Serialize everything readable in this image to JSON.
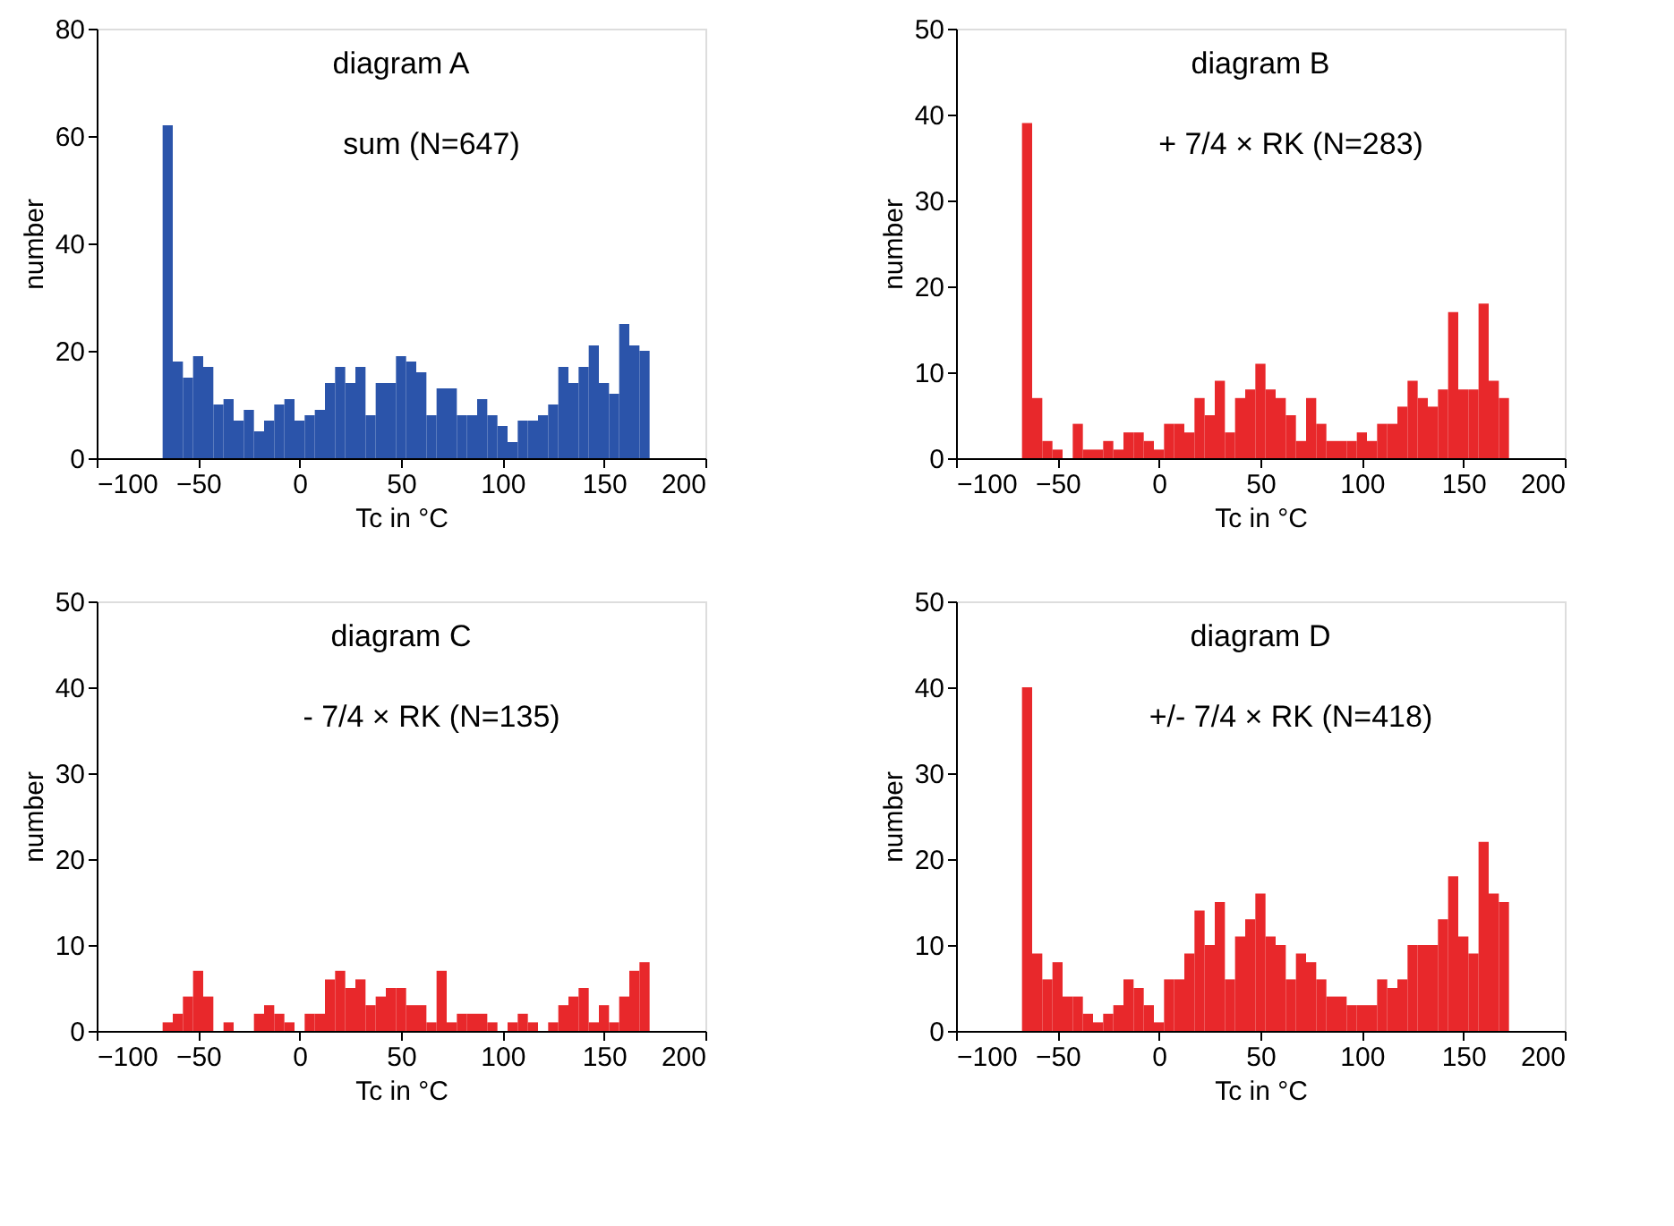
{
  "chart_data": [
    {
      "type": "histogram",
      "title": "diagram A",
      "subtitle": "sum (N=647)",
      "xlabel": "Tc in °C",
      "ylabel": "number",
      "color": "#2b54aa",
      "bins": [
        -67.5,
        -62.5,
        -57.5,
        -52.5,
        -47.5,
        -42.5,
        -37.5,
        -32.5,
        -27.5,
        -22.5,
        -17.5,
        -12.5,
        -7.5,
        -2.5,
        2.5,
        7.5,
        12.5,
        17.5,
        22.5,
        27.5,
        32.5,
        37.5,
        42.5,
        47.5,
        52.5,
        57.5,
        62.5,
        67.5,
        72.5,
        77.5,
        82.5,
        87.5,
        92.5,
        97.5,
        102.5,
        107.5,
        112.5,
        117.5,
        122.5,
        127.5,
        132.5,
        137.5,
        142.5,
        147.5,
        152.5,
        157.5,
        162.5,
        167.5,
        172.5
      ],
      "values": [
        62,
        18,
        15,
        19,
        17,
        10,
        11,
        7,
        9,
        5,
        7,
        10,
        11,
        7,
        8,
        9,
        14,
        17,
        14,
        17,
        8,
        14,
        14,
        19,
        18,
        16,
        8,
        13,
        13,
        8,
        8,
        11,
        8,
        6,
        3,
        7,
        7,
        8,
        10,
        17,
        14,
        17,
        21,
        14,
        12,
        25,
        21,
        20
      ],
      "xlim": [
        -100,
        200
      ],
      "xticks": [
        -100,
        -50,
        0,
        50,
        100,
        150,
        200
      ],
      "ylim": [
        0,
        80
      ],
      "yticks": [
        0,
        20,
        40,
        60,
        80
      ],
      "grid": false
    },
    {
      "type": "histogram",
      "title": "diagram B",
      "subtitle": "+ 7/4 × RK (N=283)",
      "xlabel": "Tc in °C",
      "ylabel": "number",
      "color": "#e8282b",
      "bins": [
        -67.5,
        -62.5,
        -57.5,
        -52.5,
        -47.5,
        -42.5,
        -37.5,
        -32.5,
        -27.5,
        -22.5,
        -17.5,
        -12.5,
        -7.5,
        -2.5,
        2.5,
        7.5,
        12.5,
        17.5,
        22.5,
        27.5,
        32.5,
        37.5,
        42.5,
        47.5,
        52.5,
        57.5,
        62.5,
        67.5,
        72.5,
        77.5,
        82.5,
        87.5,
        92.5,
        97.5,
        102.5,
        107.5,
        112.5,
        117.5,
        122.5,
        127.5,
        132.5,
        137.5,
        142.5,
        147.5,
        152.5,
        157.5,
        162.5,
        167.5,
        172.5
      ],
      "values": [
        39,
        7,
        2,
        1,
        0,
        4,
        1,
        1,
        2,
        1,
        3,
        3,
        2,
        1,
        4,
        4,
        3,
        7,
        5,
        9,
        3,
        7,
        8,
        11,
        8,
        7,
        5,
        2,
        7,
        4,
        2,
        2,
        2,
        3,
        2,
        4,
        4,
        6,
        9,
        7,
        6,
        8,
        17,
        8,
        8,
        18,
        9,
        7
      ],
      "xlim": [
        -100,
        200
      ],
      "xticks": [
        -100,
        -50,
        0,
        50,
        100,
        150,
        200
      ],
      "ylim": [
        0,
        50
      ],
      "yticks": [
        0,
        10,
        20,
        30,
        40,
        50
      ],
      "grid": false
    },
    {
      "type": "histogram",
      "title": "diagram C",
      "subtitle": "- 7/4 × RK (N=135)",
      "xlabel": "Tc in °C",
      "ylabel": "number",
      "color": "#e8282b",
      "bins": [
        -67.5,
        -62.5,
        -57.5,
        -52.5,
        -47.5,
        -42.5,
        -37.5,
        -32.5,
        -27.5,
        -22.5,
        -17.5,
        -12.5,
        -7.5,
        -2.5,
        2.5,
        7.5,
        12.5,
        17.5,
        22.5,
        27.5,
        32.5,
        37.5,
        42.5,
        47.5,
        52.5,
        57.5,
        62.5,
        67.5,
        72.5,
        77.5,
        82.5,
        87.5,
        92.5,
        97.5,
        102.5,
        107.5,
        112.5,
        117.5,
        122.5,
        127.5,
        132.5,
        137.5,
        142.5,
        147.5,
        152.5,
        157.5,
        162.5,
        167.5,
        172.5
      ],
      "values": [
        1,
        2,
        4,
        7,
        4,
        0,
        1,
        0,
        0,
        2,
        3,
        2,
        1,
        0,
        2,
        2,
        6,
        7,
        5,
        6,
        3,
        4,
        5,
        5,
        3,
        3,
        1,
        7,
        1,
        2,
        2,
        2,
        1,
        0,
        1,
        2,
        1,
        0,
        1,
        3,
        4,
        5,
        1,
        3,
        1,
        4,
        7,
        8
      ],
      "xlim": [
        -100,
        200
      ],
      "xticks": [
        -100,
        -50,
        0,
        50,
        100,
        150,
        200
      ],
      "ylim": [
        0,
        50
      ],
      "yticks": [
        0,
        10,
        20,
        30,
        40,
        50
      ],
      "grid": false
    },
    {
      "type": "histogram",
      "title": "diagram D",
      "subtitle": "+/- 7/4 × RK (N=418)",
      "xlabel": "Tc in °C",
      "ylabel": "number",
      "color": "#e8282b",
      "bins": [
        -67.5,
        -62.5,
        -57.5,
        -52.5,
        -47.5,
        -42.5,
        -37.5,
        -32.5,
        -27.5,
        -22.5,
        -17.5,
        -12.5,
        -7.5,
        -2.5,
        2.5,
        7.5,
        12.5,
        17.5,
        22.5,
        27.5,
        32.5,
        37.5,
        42.5,
        47.5,
        52.5,
        57.5,
        62.5,
        67.5,
        72.5,
        77.5,
        82.5,
        87.5,
        92.5,
        97.5,
        102.5,
        107.5,
        112.5,
        117.5,
        122.5,
        127.5,
        132.5,
        137.5,
        142.5,
        147.5,
        152.5,
        157.5,
        162.5,
        167.5,
        172.5
      ],
      "values": [
        40,
        9,
        6,
        8,
        4,
        4,
        2,
        1,
        2,
        3,
        6,
        5,
        3,
        1,
        6,
        6,
        9,
        14,
        10,
        15,
        6,
        11,
        13,
        16,
        11,
        10,
        6,
        9,
        8,
        6,
        4,
        4,
        3,
        3,
        3,
        6,
        5,
        6,
        10,
        10,
        10,
        13,
        18,
        11,
        9,
        22,
        16,
        15
      ],
      "xlim": [
        -100,
        200
      ],
      "xticks": [
        -100,
        -50,
        0,
        50,
        100,
        150,
        200
      ],
      "ylim": [
        0,
        50
      ],
      "yticks": [
        0,
        10,
        20,
        30,
        40,
        50
      ],
      "grid": false
    }
  ]
}
